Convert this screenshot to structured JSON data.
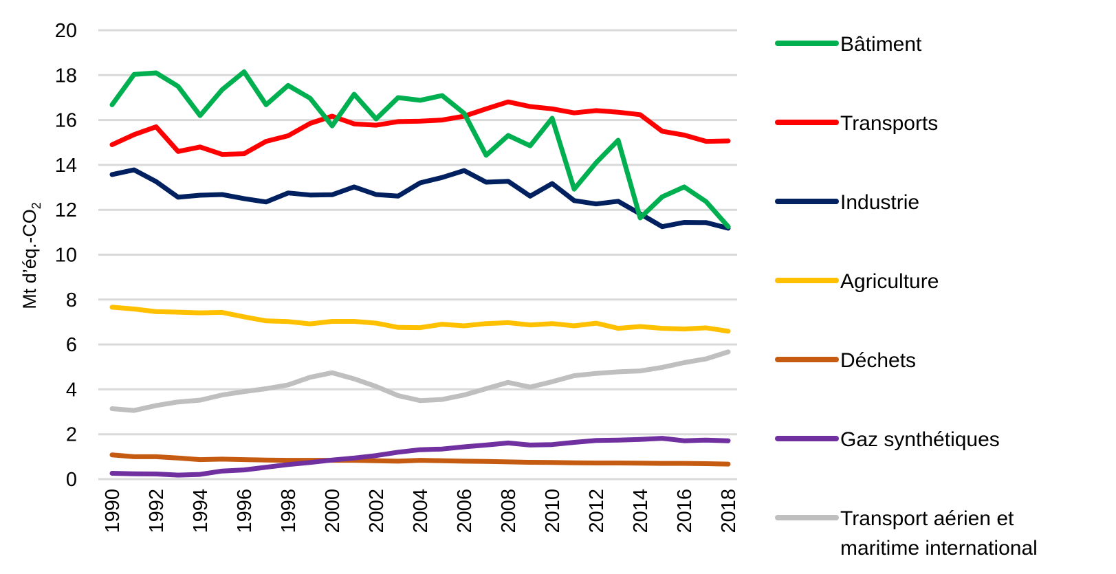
{
  "chart_data": {
    "type": "line",
    "title": "",
    "xlabel": "",
    "ylabel": "Mt d’éq.-CO",
    "ylabel_subscript": "2",
    "ylim": [
      0,
      20
    ],
    "yticks": [
      0,
      2,
      4,
      6,
      8,
      10,
      12,
      14,
      16,
      18,
      20
    ],
    "grid": "horizontal",
    "legend_position": "right",
    "x": [
      1990,
      1991,
      1992,
      1993,
      1994,
      1995,
      1996,
      1997,
      1998,
      1999,
      2000,
      2001,
      2002,
      2003,
      2004,
      2005,
      2006,
      2007,
      2008,
      2009,
      2010,
      2011,
      2012,
      2013,
      2014,
      2015,
      2016,
      2017,
      2018
    ],
    "xtick_labels": [
      "1990",
      "1992",
      "1994",
      "1996",
      "1998",
      "2000",
      "2002",
      "2004",
      "2006",
      "2008",
      "2010",
      "2012",
      "2014",
      "2016",
      "2018"
    ],
    "series": [
      {
        "name": "Bâtiment",
        "color": "#00B050",
        "values": [
          16.68,
          18.03,
          18.1,
          17.5,
          16.2,
          17.35,
          18.15,
          16.68,
          17.54,
          16.97,
          15.74,
          17.15,
          16.05,
          17.0,
          16.88,
          17.09,
          16.3,
          14.43,
          15.31,
          14.85,
          16.08,
          12.92,
          14.1,
          15.1,
          11.64,
          12.58,
          13.02,
          12.36,
          11.25
        ]
      },
      {
        "name": "Transports",
        "color": "#FF0000",
        "values": [
          14.9,
          15.35,
          15.7,
          14.6,
          14.8,
          14.47,
          14.5,
          15.05,
          15.3,
          15.85,
          16.17,
          15.83,
          15.77,
          15.93,
          15.95,
          16.0,
          16.17,
          16.5,
          16.81,
          16.6,
          16.5,
          16.32,
          16.42,
          16.35,
          16.24,
          15.5,
          15.33,
          15.05,
          15.07
        ]
      },
      {
        "name": "Industrie",
        "color": "#002060",
        "values": [
          13.57,
          13.78,
          13.26,
          12.56,
          12.65,
          12.68,
          12.5,
          12.35,
          12.75,
          12.66,
          12.67,
          13.02,
          12.68,
          12.61,
          13.2,
          13.44,
          13.75,
          13.23,
          13.27,
          12.61,
          13.17,
          12.41,
          12.26,
          12.38,
          11.82,
          11.25,
          11.44,
          11.43,
          11.18
        ]
      },
      {
        "name": "Agriculture",
        "color": "#FFC000",
        "values": [
          7.66,
          7.58,
          7.46,
          7.44,
          7.41,
          7.43,
          7.23,
          7.05,
          7.02,
          6.92,
          7.03,
          7.03,
          6.95,
          6.76,
          6.75,
          6.9,
          6.83,
          6.93,
          6.97,
          6.87,
          6.93,
          6.83,
          6.95,
          6.72,
          6.8,
          6.72,
          6.69,
          6.74,
          6.59
        ]
      },
      {
        "name": "Déchets",
        "color": "#C55A11",
        "values": [
          1.08,
          1.0,
          1.0,
          0.94,
          0.87,
          0.89,
          0.87,
          0.85,
          0.84,
          0.84,
          0.84,
          0.84,
          0.82,
          0.8,
          0.84,
          0.82,
          0.8,
          0.79,
          0.77,
          0.75,
          0.74,
          0.73,
          0.72,
          0.72,
          0.71,
          0.7,
          0.7,
          0.69,
          0.67
        ]
      },
      {
        "name": "Gaz synthétiques",
        "color": "#7030A0",
        "values": [
          0.26,
          0.24,
          0.23,
          0.18,
          0.21,
          0.36,
          0.41,
          0.53,
          0.65,
          0.74,
          0.85,
          0.94,
          1.05,
          1.2,
          1.31,
          1.34,
          1.44,
          1.52,
          1.61,
          1.52,
          1.54,
          1.64,
          1.72,
          1.74,
          1.77,
          1.82,
          1.71,
          1.74,
          1.71
        ]
      },
      {
        "name": "Transport aérien et maritime international",
        "legend_lines": [
          "Transport aérien et",
          "maritime international"
        ],
        "color": "#BFBFBF",
        "values": [
          3.14,
          3.06,
          3.28,
          3.44,
          3.52,
          3.75,
          3.9,
          4.03,
          4.2,
          4.54,
          4.74,
          4.47,
          4.13,
          3.72,
          3.5,
          3.55,
          3.75,
          4.03,
          4.31,
          4.1,
          4.34,
          4.61,
          4.71,
          4.78,
          4.82,
          4.98,
          5.19,
          5.36,
          5.67
        ]
      }
    ]
  },
  "colors": {
    "gridline": "#D9D9D9",
    "text": "#000000",
    "background": "#FFFFFF"
  }
}
